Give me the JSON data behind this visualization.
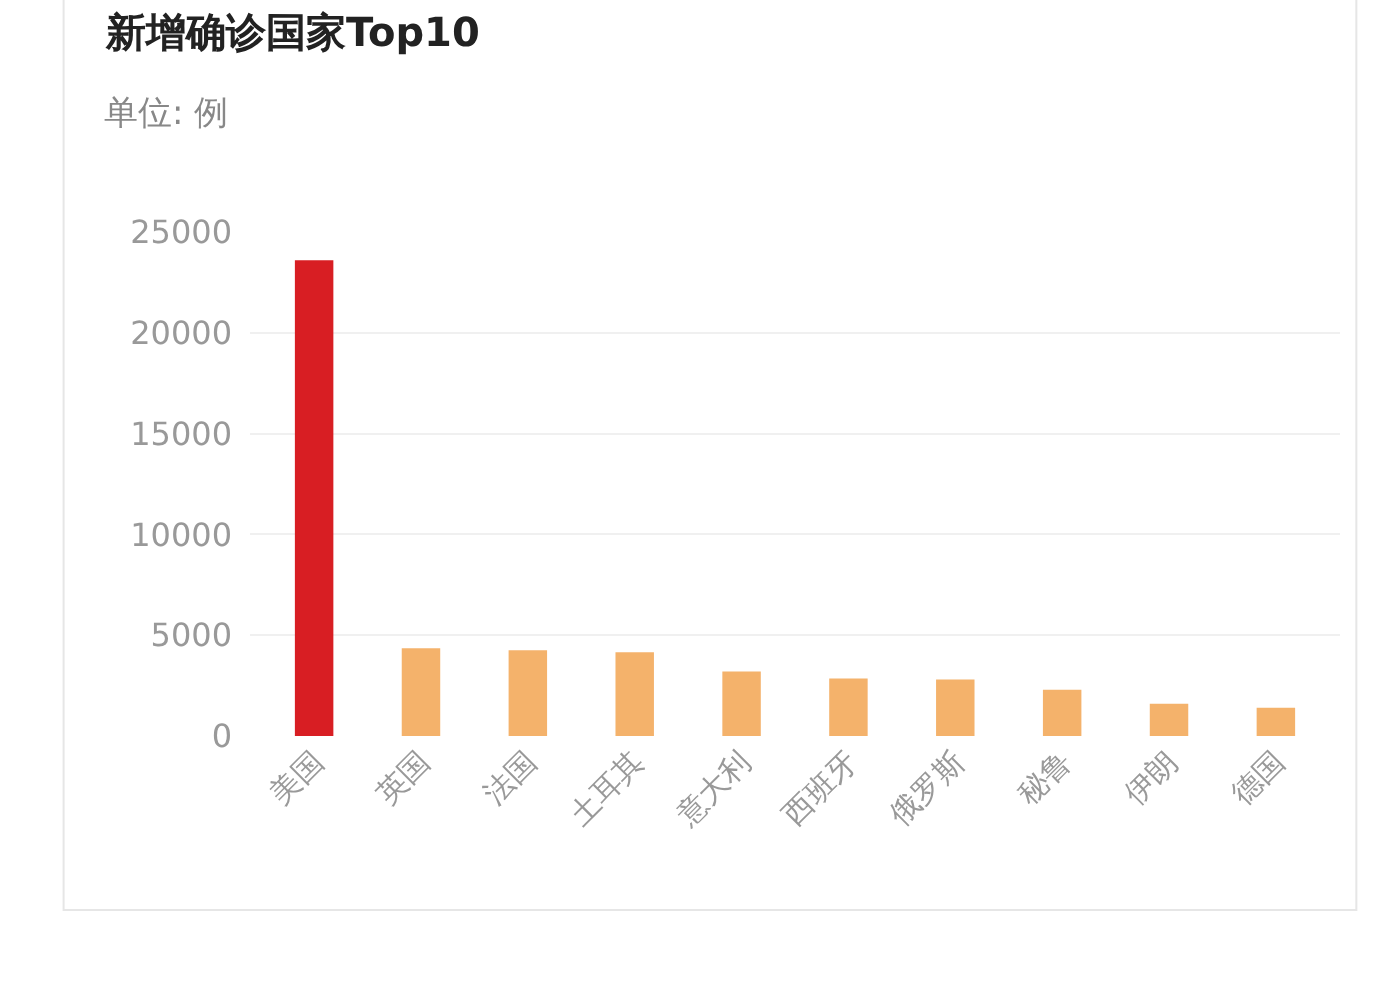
{
  "chart_data": {
    "type": "bar",
    "title": "新增确诊国家Top10",
    "subtitle": "单位: 例",
    "categories": [
      "美国",
      "英国",
      "法国",
      "土耳其",
      "意大利",
      "西班牙",
      "俄罗斯",
      "秘鲁",
      "伊朗",
      "德国"
    ],
    "values": [
      23600,
      4350,
      4250,
      4150,
      3200,
      2850,
      2800,
      2300,
      1600,
      1400
    ],
    "colors": [
      "#d81e23",
      "#f4b26b",
      "#f4b26b",
      "#f4b26b",
      "#f4b26b",
      "#f4b26b",
      "#f4b26b",
      "#f4b26b",
      "#f4b26b",
      "#f4b26b"
    ],
    "ylim": [
      0,
      25000
    ],
    "yticks": [
      0,
      5000,
      10000,
      15000,
      20000,
      25000
    ],
    "grid": "y"
  }
}
